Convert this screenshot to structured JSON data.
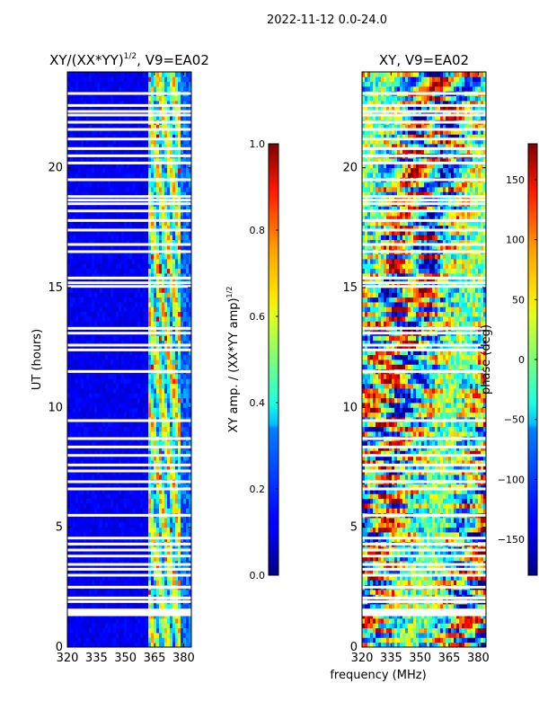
{
  "chart_data": {
    "type": "heatmap",
    "suptitle": "2022-11-12 0.0-24.0",
    "xlabel": "frequency (MHz)",
    "ylabel": "UT (hours)",
    "panels": [
      {
        "title": "XY/(XX*YY)",
        "title_sup": "1/2",
        "title_tail": ", V9=EA02",
        "xlim": [
          320,
          384
        ],
        "ylim": [
          0,
          24
        ],
        "xticks": [
          320,
          335,
          350,
          365,
          380
        ],
        "yticks": [
          0,
          5,
          10,
          15,
          20
        ],
        "colorbar": {
          "label": "XY amp. / (XX*YY amp)",
          "label_sup": "1/2",
          "range": [
            0.0,
            1.0
          ],
          "ticks": [
            "0.0",
            "0.2",
            "0.4",
            "0.6",
            "0.8",
            "1.0"
          ],
          "tick_values": [
            0.0,
            0.2,
            0.4,
            0.6,
            0.8,
            1.0
          ]
        }
      },
      {
        "title": "XY, V9=EA02",
        "xlim": [
          320,
          384
        ],
        "ylim": [
          0,
          24
        ],
        "xticks": [
          320,
          335,
          350,
          365,
          380
        ],
        "yticks": [
          0,
          5,
          10,
          15,
          20
        ],
        "colorbar": {
          "label": "phase (deg)",
          "range": [
            -180,
            180
          ],
          "ticks": [
            "−150",
            "−100",
            "−50",
            "0",
            "50",
            "100",
            "150"
          ],
          "tick_values": [
            -150,
            -100,
            -50,
            0,
            50,
            100,
            150
          ]
        }
      }
    ],
    "flagged_ut_hours": [
      1.35,
      1.45,
      1.55,
      1.9,
      2.05,
      2.5,
      3.0,
      3.25,
      3.45,
      3.8,
      4.05,
      4.3,
      4.55,
      5.5,
      6.6,
      6.9,
      7.35,
      7.6,
      8.0,
      8.35,
      8.7,
      9.45,
      11.5,
      12.4,
      12.6,
      13.1,
      13.3,
      15.05,
      15.2,
      15.4,
      16.5,
      16.8,
      17.4,
      17.8,
      18.2,
      18.5,
      18.65,
      18.8,
      19.5,
      20.2,
      20.5,
      20.8,
      21.2,
      21.6,
      21.9,
      22.2,
      22.35,
      22.6,
      23.1
    ]
  }
}
